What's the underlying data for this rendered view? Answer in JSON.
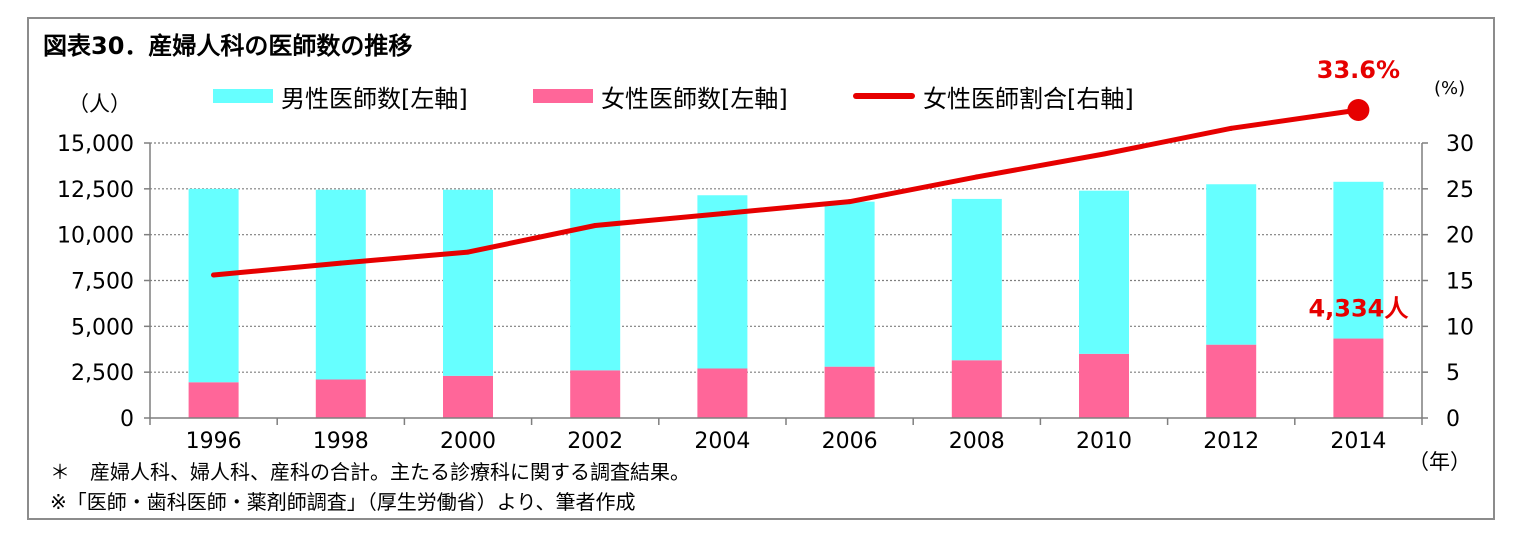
{
  "title": "図表30．産婦人科の医師数の推移",
  "legend": {
    "male": "男性医師数[左軸]",
    "female": "女性医師数[左軸]",
    "ratio": "女性医師割合[右軸]"
  },
  "units": {
    "left": "（人）",
    "right": "(%)",
    "x": "（年）"
  },
  "notes": {
    "note1": "＊　産婦人科、婦人科、産科の合計。主たる診療科に関する調査結果。",
    "note2": "※「医師・歯科医師・薬剤師調査」（厚生労働省）より、筆者作成"
  },
  "colors": {
    "male": "#66ffff",
    "female": "#ff6699",
    "ratio": "#e60000",
    "annotation": "#e60000"
  },
  "chart_data": {
    "type": "bar",
    "categories": [
      "1996",
      "1998",
      "2000",
      "2002",
      "2004",
      "2006",
      "2008",
      "2010",
      "2012",
      "2014"
    ],
    "series": [
      {
        "name": "男性医師数[左軸]",
        "type": "bar",
        "axis": "left",
        "stacked": true,
        "values": [
          10550,
          10350,
          10150,
          9900,
          9450,
          9000,
          8800,
          8900,
          8750,
          8550
        ]
      },
      {
        "name": "女性医師数[左軸]",
        "type": "bar",
        "axis": "left",
        "stacked": true,
        "values": [
          1950,
          2100,
          2300,
          2600,
          2700,
          2800,
          3150,
          3500,
          4000,
          4334
        ]
      },
      {
        "name": "女性医師割合[右軸]",
        "type": "line",
        "axis": "right",
        "values": [
          15.6,
          16.9,
          18.1,
          21.0,
          22.3,
          23.6,
          26.3,
          28.8,
          31.6,
          33.6
        ]
      }
    ],
    "y_left": {
      "min": 0,
      "max": 15000,
      "ticks": [
        "0",
        "2,500",
        "5,000",
        "7,500",
        "10,000",
        "12,500",
        "15,000"
      ]
    },
    "y_right": {
      "min": 0,
      "max": 30,
      "ticks": [
        "0",
        "5",
        "10",
        "15",
        "20",
        "25",
        "30"
      ]
    },
    "annotations": {
      "ratio_last": "33.6%",
      "female_last": "4,334人"
    },
    "grid": true,
    "legend_position": "top"
  }
}
